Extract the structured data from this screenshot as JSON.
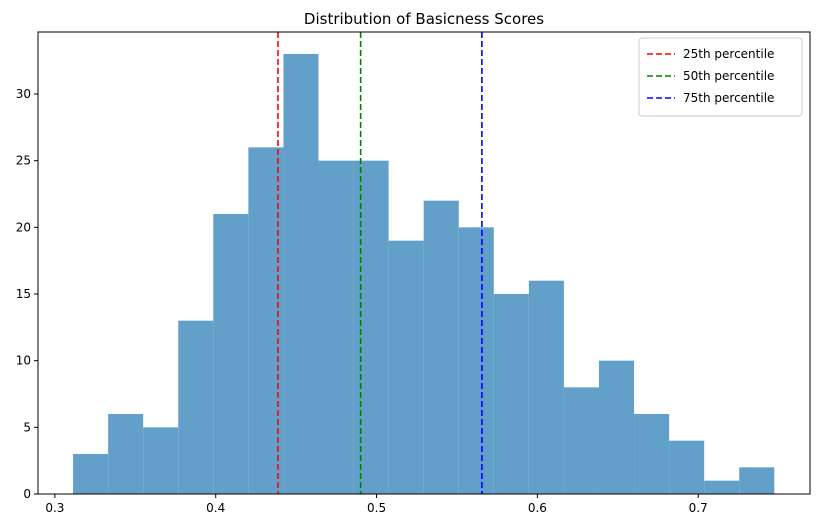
{
  "chart_data": {
    "type": "bar",
    "title": "Distribution of Basicness Scores",
    "xlabel": "",
    "ylabel": "",
    "xlim": [
      0.2895,
      0.7695
    ],
    "ylim": [
      0,
      34.65
    ],
    "x_ticks": [
      0.3,
      0.4,
      0.5,
      0.6,
      0.7
    ],
    "x_tick_labels": [
      "0.3",
      "0.4",
      "0.5",
      "0.6",
      "0.7"
    ],
    "y_ticks": [
      0,
      5,
      10,
      15,
      20,
      25,
      30
    ],
    "y_tick_labels": [
      "0",
      "5",
      "10",
      "15",
      "20",
      "25",
      "30"
    ],
    "bin_edges": [
      0.3113,
      0.3331,
      0.3549,
      0.3767,
      0.3985,
      0.4203,
      0.4421,
      0.4639,
      0.4857,
      0.5075,
      0.5293,
      0.5511,
      0.5729,
      0.5947,
      0.6165,
      0.6383,
      0.6601,
      0.6819,
      0.7037,
      0.7255,
      0.7473
    ],
    "values": [
      3,
      6,
      5,
      13,
      21,
      26,
      33,
      25,
      25,
      19,
      22,
      20,
      15,
      16,
      8,
      10,
      6,
      4,
      1,
      2
    ],
    "bar_color": "#62a0ca",
    "grid": false,
    "lines": [
      {
        "name": "25th percentile",
        "x": 0.4387,
        "color": "#ff0000",
        "style": "dashed"
      },
      {
        "name": "50th percentile",
        "x": 0.4901,
        "color": "#008000",
        "style": "dashed"
      },
      {
        "name": "75th percentile",
        "x": 0.5655,
        "color": "#0000ff",
        "style": "dashed"
      }
    ],
    "legend_position": "top-right"
  }
}
